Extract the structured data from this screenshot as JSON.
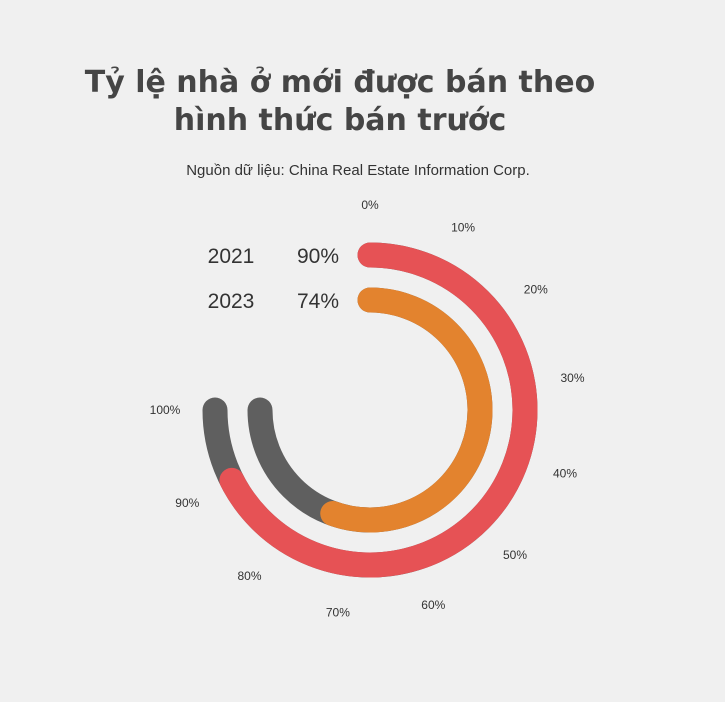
{
  "chart_data": {
    "type": "radial-bar",
    "title_line1": "Tỷ lệ nhà ở mới được bán theo",
    "title_line2": "hình thức bán trước",
    "source": "Nguồn dữ liệu: China Real Estate Information Corp.",
    "ticks": [
      "0%",
      "10%",
      "20%",
      "30%",
      "40%",
      "50%",
      "60%",
      "70%",
      "80%",
      "90%",
      "100%"
    ],
    "axis_max_percent": 100,
    "series": [
      {
        "name": "2021",
        "value": 90,
        "value_label": "90%",
        "color": "#e65255",
        "remainder_color": "#5f5f5f"
      },
      {
        "name": "2023",
        "value": 74,
        "value_label": "74%",
        "color": "#e3832e",
        "remainder_color": "#5f5f5f"
      }
    ]
  }
}
